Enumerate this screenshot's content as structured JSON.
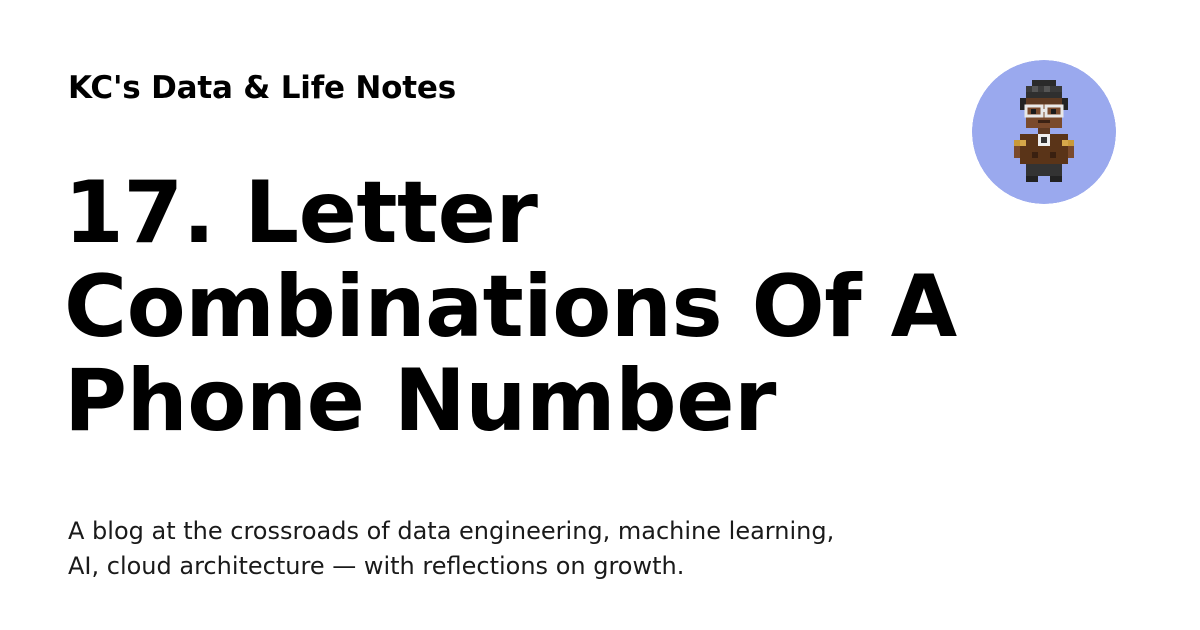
{
  "site": {
    "name": "KC's Data & Life Notes"
  },
  "post": {
    "title_lines": [
      "17. Letter",
      "Combinations Of A",
      "Phone Number"
    ]
  },
  "description": {
    "lines": [
      "A blog at the crossroads of data engineering, machine learning,",
      "AI, cloud architecture — with reflections on growth."
    ]
  },
  "avatar": {
    "icon": "pixel-art-person-avatar",
    "background_color": "#9aa9ee"
  },
  "colors": {
    "background": "#ffffff",
    "text": "#000000"
  }
}
